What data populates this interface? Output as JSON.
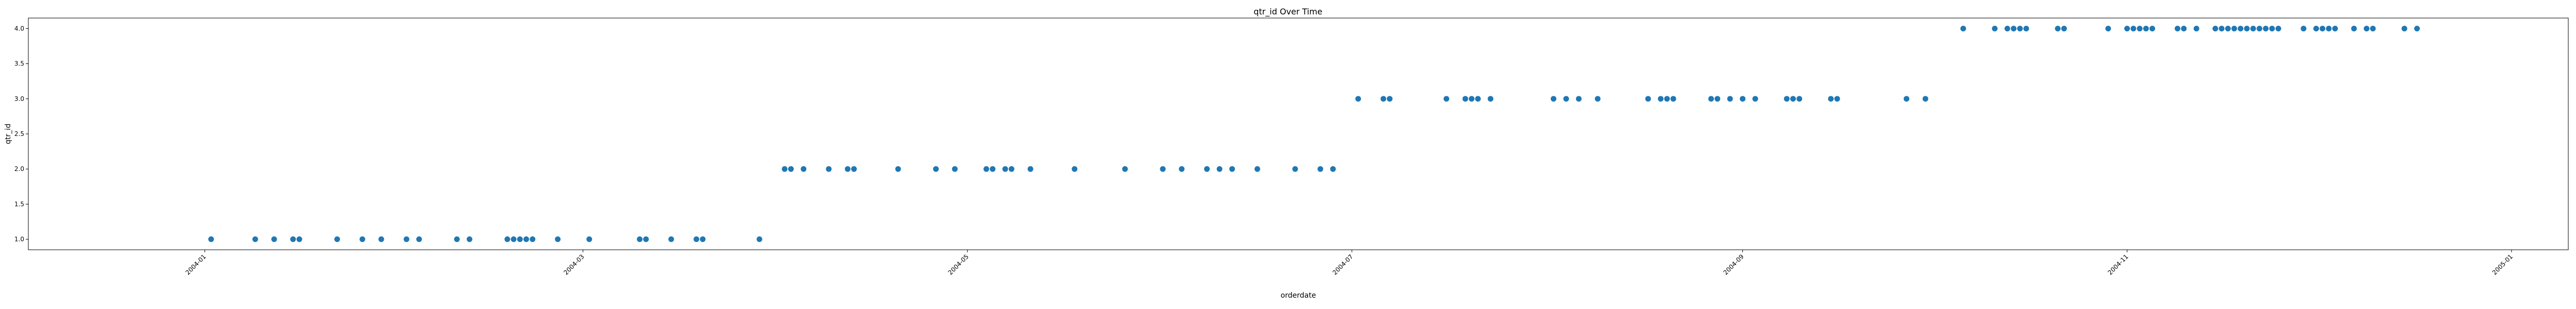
{
  "chart_data": {
    "type": "scatter",
    "title": "qtr_id Over Time",
    "xlabel": "orderdate",
    "ylabel": "qtr_id",
    "xlim": [
      "2003-12-04",
      "2005-01-10"
    ],
    "ylim": [
      0.85,
      4.15
    ],
    "grid": false,
    "legend": "none",
    "color": "#1f77b4",
    "x_ticks": [
      "2004-01-01",
      "2004-03-01",
      "2004-05-01",
      "2004-07-01",
      "2004-09-01",
      "2004-11-01",
      "2005-01-01"
    ],
    "x_tick_labels": [
      "2004-01",
      "2004-03",
      "2004-05",
      "2004-07",
      "2004-09",
      "2004-11",
      "2005-01"
    ],
    "y_ticks": [
      1.0,
      1.5,
      2.0,
      2.5,
      3.0,
      3.5,
      4.0
    ],
    "y_tick_labels": [
      "1.0",
      "1.5",
      "2.0",
      "2.5",
      "3.0",
      "3.5",
      "4.0"
    ],
    "points": [
      {
        "x": "2004-01-02",
        "y": 1
      },
      {
        "x": "2004-01-09",
        "y": 1
      },
      {
        "x": "2004-01-12",
        "y": 1
      },
      {
        "x": "2004-01-15",
        "y": 1
      },
      {
        "x": "2004-01-16",
        "y": 1
      },
      {
        "x": "2004-01-22",
        "y": 1
      },
      {
        "x": "2004-01-26",
        "y": 1
      },
      {
        "x": "2004-01-29",
        "y": 1
      },
      {
        "x": "2004-02-02",
        "y": 1
      },
      {
        "x": "2004-02-04",
        "y": 1
      },
      {
        "x": "2004-02-10",
        "y": 1
      },
      {
        "x": "2004-02-12",
        "y": 1
      },
      {
        "x": "2004-02-18",
        "y": 1
      },
      {
        "x": "2004-02-19",
        "y": 1
      },
      {
        "x": "2004-02-20",
        "y": 1
      },
      {
        "x": "2004-02-21",
        "y": 1
      },
      {
        "x": "2004-02-22",
        "y": 1
      },
      {
        "x": "2004-02-26",
        "y": 1
      },
      {
        "x": "2004-03-02",
        "y": 1
      },
      {
        "x": "2004-03-10",
        "y": 1
      },
      {
        "x": "2004-03-11",
        "y": 1
      },
      {
        "x": "2004-03-15",
        "y": 1
      },
      {
        "x": "2004-03-19",
        "y": 1
      },
      {
        "x": "2004-03-20",
        "y": 1
      },
      {
        "x": "2004-03-29",
        "y": 1
      },
      {
        "x": "2004-04-02",
        "y": 2
      },
      {
        "x": "2004-04-03",
        "y": 2
      },
      {
        "x": "2004-04-05",
        "y": 2
      },
      {
        "x": "2004-04-09",
        "y": 2
      },
      {
        "x": "2004-04-12",
        "y": 2
      },
      {
        "x": "2004-04-13",
        "y": 2
      },
      {
        "x": "2004-04-20",
        "y": 2
      },
      {
        "x": "2004-04-26",
        "y": 2
      },
      {
        "x": "2004-04-29",
        "y": 2
      },
      {
        "x": "2004-05-04",
        "y": 2
      },
      {
        "x": "2004-05-05",
        "y": 2
      },
      {
        "x": "2004-05-07",
        "y": 2
      },
      {
        "x": "2004-05-08",
        "y": 2
      },
      {
        "x": "2004-05-11",
        "y": 2
      },
      {
        "x": "2004-05-18",
        "y": 2
      },
      {
        "x": "2004-05-26",
        "y": 2
      },
      {
        "x": "2004-06-01",
        "y": 2
      },
      {
        "x": "2004-06-04",
        "y": 2
      },
      {
        "x": "2004-06-08",
        "y": 2
      },
      {
        "x": "2004-06-10",
        "y": 2
      },
      {
        "x": "2004-06-12",
        "y": 2
      },
      {
        "x": "2004-06-16",
        "y": 2
      },
      {
        "x": "2004-06-22",
        "y": 2
      },
      {
        "x": "2004-06-26",
        "y": 2
      },
      {
        "x": "2004-06-28",
        "y": 2
      },
      {
        "x": "2004-07-02",
        "y": 3
      },
      {
        "x": "2004-07-06",
        "y": 3
      },
      {
        "x": "2004-07-07",
        "y": 3
      },
      {
        "x": "2004-07-16",
        "y": 3
      },
      {
        "x": "2004-07-19",
        "y": 3
      },
      {
        "x": "2004-07-20",
        "y": 3
      },
      {
        "x": "2004-07-21",
        "y": 3
      },
      {
        "x": "2004-07-23",
        "y": 3
      },
      {
        "x": "2004-08-02",
        "y": 3
      },
      {
        "x": "2004-08-04",
        "y": 3
      },
      {
        "x": "2004-08-06",
        "y": 3
      },
      {
        "x": "2004-08-09",
        "y": 3
      },
      {
        "x": "2004-08-17",
        "y": 3
      },
      {
        "x": "2004-08-19",
        "y": 3
      },
      {
        "x": "2004-08-20",
        "y": 3
      },
      {
        "x": "2004-08-21",
        "y": 3
      },
      {
        "x": "2004-08-27",
        "y": 3
      },
      {
        "x": "2004-08-28",
        "y": 3
      },
      {
        "x": "2004-08-30",
        "y": 3
      },
      {
        "x": "2004-09-01",
        "y": 3
      },
      {
        "x": "2004-09-03",
        "y": 3
      },
      {
        "x": "2004-09-08",
        "y": 3
      },
      {
        "x": "2004-09-09",
        "y": 3
      },
      {
        "x": "2004-09-10",
        "y": 3
      },
      {
        "x": "2004-09-15",
        "y": 3
      },
      {
        "x": "2004-09-16",
        "y": 3
      },
      {
        "x": "2004-09-27",
        "y": 3
      },
      {
        "x": "2004-09-30",
        "y": 3
      },
      {
        "x": "2004-10-06",
        "y": 4
      },
      {
        "x": "2004-10-11",
        "y": 4
      },
      {
        "x": "2004-10-13",
        "y": 4
      },
      {
        "x": "2004-10-14",
        "y": 4
      },
      {
        "x": "2004-10-15",
        "y": 4
      },
      {
        "x": "2004-10-16",
        "y": 4
      },
      {
        "x": "2004-10-21",
        "y": 4
      },
      {
        "x": "2004-10-22",
        "y": 4
      },
      {
        "x": "2004-10-29",
        "y": 4
      },
      {
        "x": "2004-11-01",
        "y": 4
      },
      {
        "x": "2004-11-02",
        "y": 4
      },
      {
        "x": "2004-11-03",
        "y": 4
      },
      {
        "x": "2004-11-04",
        "y": 4
      },
      {
        "x": "2004-11-05",
        "y": 4
      },
      {
        "x": "2004-11-09",
        "y": 4
      },
      {
        "x": "2004-11-10",
        "y": 4
      },
      {
        "x": "2004-11-12",
        "y": 4
      },
      {
        "x": "2004-11-15",
        "y": 4
      },
      {
        "x": "2004-11-16",
        "y": 4
      },
      {
        "x": "2004-11-17",
        "y": 4
      },
      {
        "x": "2004-11-18",
        "y": 4
      },
      {
        "x": "2004-11-19",
        "y": 4
      },
      {
        "x": "2004-11-20",
        "y": 4
      },
      {
        "x": "2004-11-21",
        "y": 4
      },
      {
        "x": "2004-11-22",
        "y": 4
      },
      {
        "x": "2004-11-23",
        "y": 4
      },
      {
        "x": "2004-11-24",
        "y": 4
      },
      {
        "x": "2004-11-25",
        "y": 4
      },
      {
        "x": "2004-11-29",
        "y": 4
      },
      {
        "x": "2004-12-01",
        "y": 4
      },
      {
        "x": "2004-12-02",
        "y": 4
      },
      {
        "x": "2004-12-03",
        "y": 4
      },
      {
        "x": "2004-12-04",
        "y": 4
      },
      {
        "x": "2004-12-07",
        "y": 4
      },
      {
        "x": "2004-12-09",
        "y": 4
      },
      {
        "x": "2004-12-10",
        "y": 4
      },
      {
        "x": "2004-12-15",
        "y": 4
      },
      {
        "x": "2004-12-17",
        "y": 4
      }
    ]
  }
}
